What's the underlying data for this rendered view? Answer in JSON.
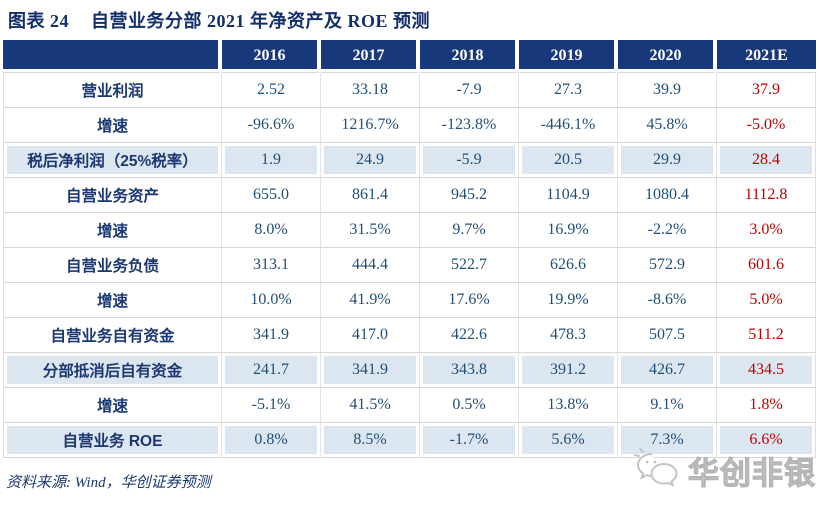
{
  "title": {
    "prefix": "图表 24",
    "text": "自营业务分部 2021 年净资产及 ROE 预测"
  },
  "table": {
    "corner_label": "",
    "years": [
      "2016",
      "2017",
      "2018",
      "2019",
      "2020",
      "2021E"
    ],
    "rows": [
      {
        "label": "营业利润",
        "values": [
          "2.52",
          "33.18",
          "-7.9",
          "27.3",
          "39.9",
          "37.9"
        ],
        "highlight": false
      },
      {
        "label": "增速",
        "values": [
          "-96.6%",
          "1216.7%",
          "-123.8%",
          "-446.1%",
          "45.8%",
          "-5.0%"
        ],
        "highlight": false
      },
      {
        "label": "税后净利润（25%税率）",
        "values": [
          "1.9",
          "24.9",
          "-5.9",
          "20.5",
          "29.9",
          "28.4"
        ],
        "highlight": true
      },
      {
        "label": "自营业务资产",
        "values": [
          "655.0",
          "861.4",
          "945.2",
          "1104.9",
          "1080.4",
          "1112.8"
        ],
        "highlight": false
      },
      {
        "label": "增速",
        "values": [
          "8.0%",
          "31.5%",
          "9.7%",
          "16.9%",
          "-2.2%",
          "3.0%"
        ],
        "highlight": false
      },
      {
        "label": "自营业务负债",
        "values": [
          "313.1",
          "444.4",
          "522.7",
          "626.6",
          "572.9",
          "601.6"
        ],
        "highlight": false
      },
      {
        "label": "增速",
        "values": [
          "10.0%",
          "41.9%",
          "17.6%",
          "19.9%",
          "-8.6%",
          "5.0%"
        ],
        "highlight": false
      },
      {
        "label": "自营业务自有资金",
        "values": [
          "341.9",
          "417.0",
          "422.6",
          "478.3",
          "507.5",
          "511.2"
        ],
        "highlight": false
      },
      {
        "label": "分部抵消后自有资金",
        "values": [
          "241.7",
          "341.9",
          "343.8",
          "391.2",
          "426.7",
          "434.5"
        ],
        "highlight": true
      },
      {
        "label": "增速",
        "values": [
          "-5.1%",
          "41.5%",
          "0.5%",
          "13.8%",
          "9.1%",
          "1.8%"
        ],
        "highlight": false
      },
      {
        "label": "自营业务 ROE",
        "values": [
          "0.8%",
          "8.5%",
          "-1.7%",
          "5.6%",
          "7.3%",
          "6.6%"
        ],
        "highlight": true
      }
    ]
  },
  "chart_data": {
    "type": "table",
    "title": "自营业务分部 2021 年净资产及 ROE 预测",
    "columns": [
      "",
      "2016",
      "2017",
      "2018",
      "2019",
      "2020",
      "2021E"
    ],
    "rows": [
      [
        "营业利润",
        "2.52",
        "33.18",
        "-7.9",
        "27.3",
        "39.9",
        "37.9"
      ],
      [
        "增速",
        "-96.6%",
        "1216.7%",
        "-123.8%",
        "-446.1%",
        "45.8%",
        "-5.0%"
      ],
      [
        "税后净利润（25%税率）",
        "1.9",
        "24.9",
        "-5.9",
        "20.5",
        "29.9",
        "28.4"
      ],
      [
        "自营业务资产",
        "655.0",
        "861.4",
        "945.2",
        "1104.9",
        "1080.4",
        "1112.8"
      ],
      [
        "增速",
        "8.0%",
        "31.5%",
        "9.7%",
        "16.9%",
        "-2.2%",
        "3.0%"
      ],
      [
        "自营业务负债",
        "313.1",
        "444.4",
        "522.7",
        "626.6",
        "572.9",
        "601.6"
      ],
      [
        "增速",
        "10.0%",
        "41.9%",
        "17.6%",
        "19.9%",
        "-8.6%",
        "5.0%"
      ],
      [
        "自营业务自有资金",
        "341.9",
        "417.0",
        "422.6",
        "478.3",
        "507.5",
        "511.2"
      ],
      [
        "分部抵消后自有资金",
        "241.7",
        "341.9",
        "343.8",
        "391.2",
        "426.7",
        "434.5"
      ],
      [
        "增速",
        "-5.1%",
        "41.5%",
        "0.5%",
        "13.8%",
        "9.1%",
        "1.8%"
      ],
      [
        "自营业务 ROE",
        "0.8%",
        "8.5%",
        "-1.7%",
        "5.6%",
        "7.3%",
        "6.6%"
      ]
    ]
  },
  "footer": {
    "source": "资料来源: Wind，华创证券预测"
  },
  "watermark": {
    "label": "华创非银",
    "icon": "megaphone-chat-icon"
  },
  "colors": {
    "header_bg": "#17387b",
    "title_text": "#132f6b",
    "value_text": "#1f4e79",
    "forecast_red": "#bf0000",
    "highlight_row_bg": "#dce6f1",
    "gridline": "#d8d8d8",
    "watermark_gray": "#c3c3c3"
  }
}
